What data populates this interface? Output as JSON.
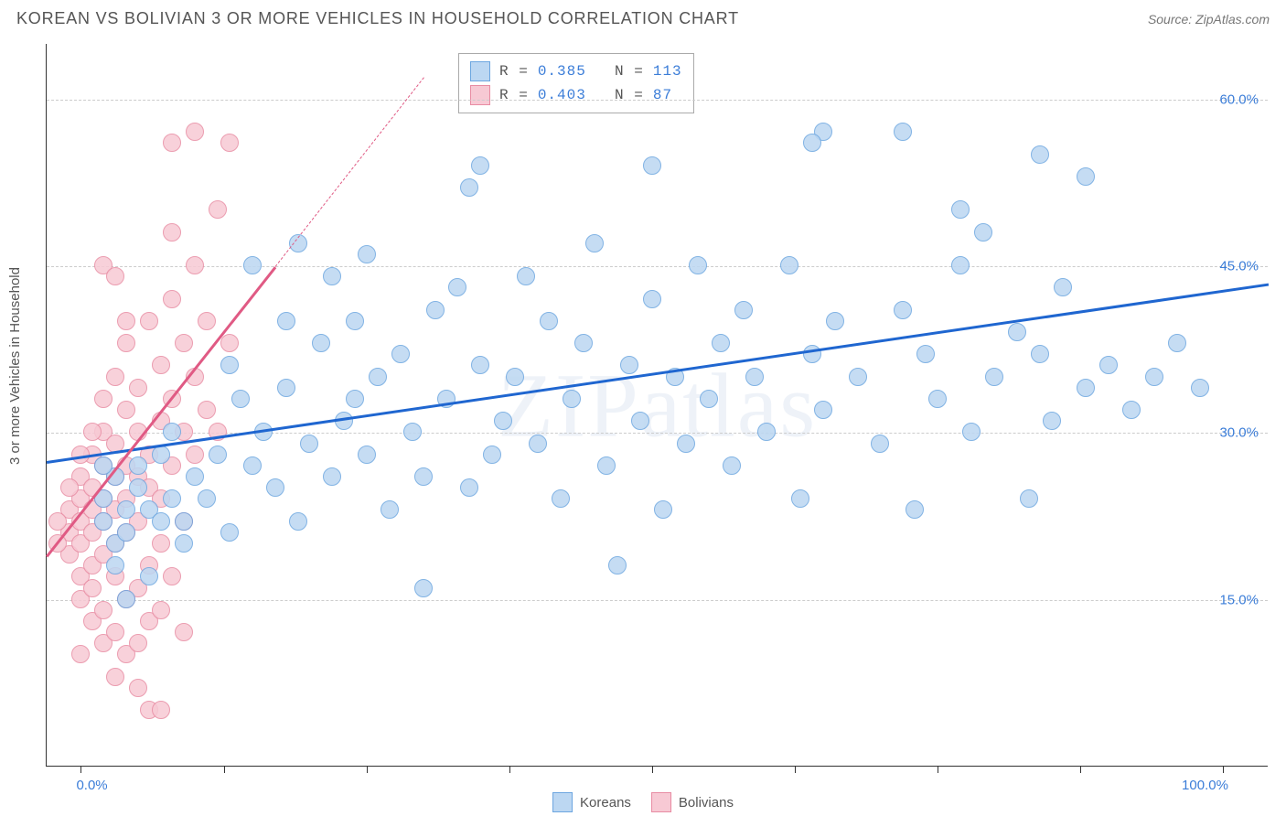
{
  "header": {
    "title": "KOREAN VS BOLIVIAN 3 OR MORE VEHICLES IN HOUSEHOLD CORRELATION CHART",
    "source_prefix": "Source: ",
    "source": "ZipAtlas.com"
  },
  "watermark": "ZIPatlas",
  "chart": {
    "type": "scatter",
    "ylabel": "3 or more Vehicles in Household",
    "background_color": "#ffffff",
    "grid_color": "#cccccc",
    "axis_color": "#333333",
    "tick_label_color": "#3b7dd8",
    "xlim": [
      -3,
      104
    ],
    "ylim": [
      0,
      65
    ],
    "yticks": [
      15,
      30,
      45,
      60
    ],
    "ytick_labels": [
      "15.0%",
      "30.0%",
      "45.0%",
      "60.0%"
    ],
    "xticks": [
      0,
      12.5,
      25,
      37.5,
      50,
      62.5,
      75,
      87.5,
      100
    ],
    "xtick_labels": {
      "0": "0.0%",
      "100": "100.0%"
    },
    "series": [
      {
        "name": "Koreans",
        "marker_fill": "#bcd7f2",
        "marker_stroke": "#6ca6e0",
        "marker_radius": 10,
        "trend_color": "#1f66d0",
        "trend": {
          "x1": -3,
          "y1": 27.5,
          "x2": 104,
          "y2": 43.5
        },
        "R": "0.385",
        "N": "113",
        "points": [
          [
            2,
            22
          ],
          [
            2,
            24
          ],
          [
            3,
            20
          ],
          [
            4,
            23
          ],
          [
            3,
            26
          ],
          [
            2,
            27
          ],
          [
            5,
            25
          ],
          [
            4,
            21
          ],
          [
            6,
            23
          ],
          [
            5,
            27
          ],
          [
            8,
            24
          ],
          [
            7,
            28
          ],
          [
            9,
            22
          ],
          [
            10,
            26
          ],
          [
            8,
            30
          ],
          [
            12,
            28
          ],
          [
            11,
            24
          ],
          [
            13,
            21
          ],
          [
            14,
            33
          ],
          [
            15,
            27
          ],
          [
            13,
            36
          ],
          [
            16,
            30
          ],
          [
            17,
            25
          ],
          [
            18,
            34
          ],
          [
            19,
            22
          ],
          [
            20,
            29
          ],
          [
            21,
            38
          ],
          [
            22,
            26
          ],
          [
            23,
            31
          ],
          [
            24,
            40
          ],
          [
            25,
            28
          ],
          [
            26,
            35
          ],
          [
            27,
            23
          ],
          [
            28,
            37
          ],
          [
            29,
            30
          ],
          [
            30,
            26
          ],
          [
            31,
            41
          ],
          [
            32,
            33
          ],
          [
            33,
            43
          ],
          [
            34,
            25
          ],
          [
            35,
            36
          ],
          [
            36,
            28
          ],
          [
            37,
            31
          ],
          [
            38,
            35
          ],
          [
            39,
            44
          ],
          [
            40,
            29
          ],
          [
            41,
            40
          ],
          [
            42,
            24
          ],
          [
            43,
            33
          ],
          [
            44,
            38
          ],
          [
            45,
            47
          ],
          [
            46,
            27
          ],
          [
            47,
            18
          ],
          [
            48,
            36
          ],
          [
            49,
            31
          ],
          [
            50,
            42
          ],
          [
            51,
            23
          ],
          [
            52,
            35
          ],
          [
            53,
            29
          ],
          [
            54,
            45
          ],
          [
            55,
            33
          ],
          [
            56,
            38
          ],
          [
            57,
            27
          ],
          [
            58,
            41
          ],
          [
            59,
            35
          ],
          [
            60,
            30
          ],
          [
            62,
            45
          ],
          [
            63,
            24
          ],
          [
            64,
            37
          ],
          [
            65,
            32
          ],
          [
            66,
            40
          ],
          [
            68,
            35
          ],
          [
            70,
            29
          ],
          [
            72,
            41
          ],
          [
            73,
            23
          ],
          [
            74,
            37
          ],
          [
            75,
            33
          ],
          [
            77,
            45
          ],
          [
            78,
            30
          ],
          [
            80,
            35
          ],
          [
            82,
            39
          ],
          [
            83,
            24
          ],
          [
            84,
            37
          ],
          [
            85,
            31
          ],
          [
            86,
            43
          ],
          [
            88,
            34
          ],
          [
            90,
            36
          ],
          [
            92,
            32
          ],
          [
            94,
            35
          ],
          [
            96,
            38
          ],
          [
            34,
            52
          ],
          [
            35,
            54
          ],
          [
            50,
            54
          ],
          [
            65,
            57
          ],
          [
            72,
            57
          ],
          [
            64,
            56
          ],
          [
            84,
            55
          ],
          [
            88,
            53
          ],
          [
            77,
            50
          ],
          [
            79,
            48
          ],
          [
            15,
            45
          ],
          [
            19,
            47
          ],
          [
            25,
            46
          ],
          [
            22,
            44
          ],
          [
            24,
            33
          ],
          [
            30,
            16
          ],
          [
            18,
            40
          ],
          [
            98,
            34
          ],
          [
            7,
            22
          ],
          [
            3,
            18
          ],
          [
            4,
            15
          ],
          [
            6,
            17
          ],
          [
            9,
            20
          ]
        ]
      },
      {
        "name": "Bolivians",
        "marker_fill": "#f7c9d4",
        "marker_stroke": "#e88ca3",
        "marker_radius": 10,
        "trend_color": "#e05a84",
        "trend": {
          "x1": -3,
          "y1": 19,
          "x2": 17,
          "y2": 45
        },
        "trend_dash": {
          "x1": 17,
          "y1": 45,
          "x2": 30,
          "y2": 62
        },
        "R": "0.403",
        "N": "87",
        "points": [
          [
            -1,
            19
          ],
          [
            -1,
            21
          ],
          [
            -1,
            23
          ],
          [
            0,
            17
          ],
          [
            0,
            20
          ],
          [
            0,
            22
          ],
          [
            0,
            24
          ],
          [
            0,
            26
          ],
          [
            0,
            15
          ],
          [
            1,
            18
          ],
          [
            1,
            21
          ],
          [
            1,
            23
          ],
          [
            1,
            25
          ],
          [
            1,
            28
          ],
          [
            1,
            16
          ],
          [
            1,
            13
          ],
          [
            2,
            19
          ],
          [
            2,
            22
          ],
          [
            2,
            24
          ],
          [
            2,
            27
          ],
          [
            2,
            30
          ],
          [
            2,
            33
          ],
          [
            2,
            14
          ],
          [
            2,
            11
          ],
          [
            3,
            20
          ],
          [
            3,
            23
          ],
          [
            3,
            26
          ],
          [
            3,
            29
          ],
          [
            3,
            35
          ],
          [
            3,
            17
          ],
          [
            3,
            12
          ],
          [
            3,
            8
          ],
          [
            4,
            21
          ],
          [
            4,
            24
          ],
          [
            4,
            27
          ],
          [
            4,
            32
          ],
          [
            4,
            38
          ],
          [
            4,
            15
          ],
          [
            4,
            10
          ],
          [
            5,
            22
          ],
          [
            5,
            26
          ],
          [
            5,
            30
          ],
          [
            5,
            34
          ],
          [
            5,
            16
          ],
          [
            5,
            11
          ],
          [
            5,
            7
          ],
          [
            6,
            25
          ],
          [
            6,
            28
          ],
          [
            6,
            40
          ],
          [
            6,
            18
          ],
          [
            6,
            13
          ],
          [
            6,
            5
          ],
          [
            7,
            24
          ],
          [
            7,
            31
          ],
          [
            7,
            36
          ],
          [
            7,
            20
          ],
          [
            7,
            14
          ],
          [
            8,
            27
          ],
          [
            8,
            33
          ],
          [
            8,
            42
          ],
          [
            8,
            48
          ],
          [
            8,
            17
          ],
          [
            9,
            30
          ],
          [
            9,
            38
          ],
          [
            9,
            22
          ],
          [
            9,
            12
          ],
          [
            10,
            28
          ],
          [
            10,
            35
          ],
          [
            10,
            45
          ],
          [
            11,
            32
          ],
          [
            11,
            40
          ],
          [
            12,
            30
          ],
          [
            12,
            50
          ],
          [
            13,
            56
          ],
          [
            13,
            38
          ],
          [
            8,
            56
          ],
          [
            10,
            57
          ],
          [
            7,
            5
          ],
          [
            1,
            30
          ],
          [
            0,
            28
          ],
          [
            2,
            45
          ],
          [
            3,
            44
          ],
          [
            4,
            40
          ],
          [
            -2,
            20
          ],
          [
            -2,
            22
          ],
          [
            -1,
            25
          ],
          [
            0,
            10
          ]
        ]
      }
    ],
    "stats_box": {
      "border_color": "#aaaaaa",
      "bg": "#ffffff"
    },
    "footer_legend": {
      "items": [
        "Koreans",
        "Bolivians"
      ]
    }
  }
}
